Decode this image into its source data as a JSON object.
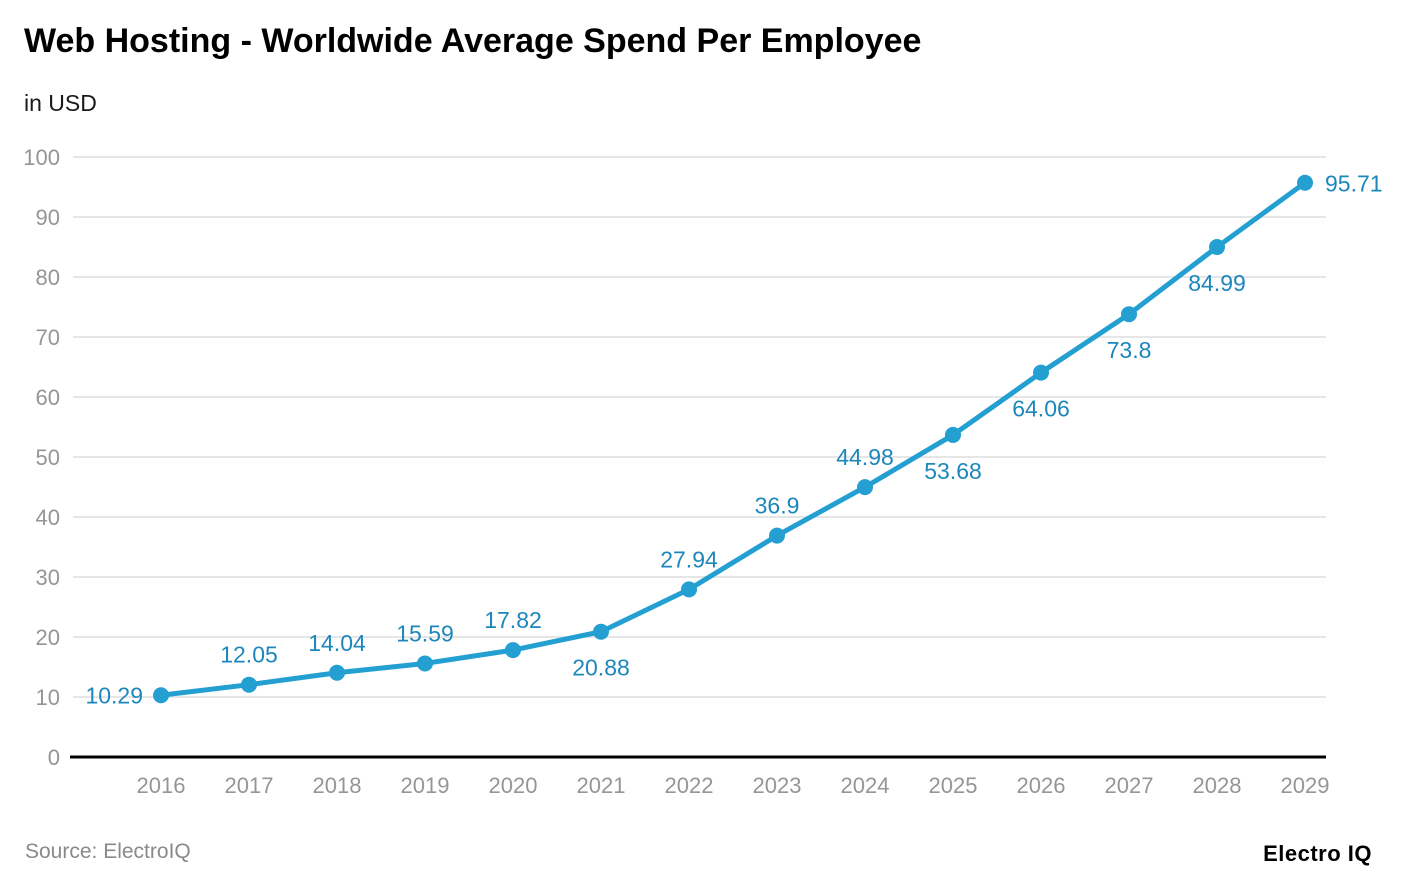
{
  "header": {
    "title": "Web Hosting - Worldwide Average Spend Per Employee",
    "subtitle": "in USD"
  },
  "footer": {
    "source": "Source: ElectroIQ",
    "brand": "Electro IQ"
  },
  "chart_data": {
    "type": "line",
    "title": "Web Hosting - Worldwide Average Spend Per Employee",
    "units": "USD",
    "categories": [
      "2016",
      "2017",
      "2018",
      "2019",
      "2020",
      "2021",
      "2022",
      "2023",
      "2024",
      "2025",
      "2026",
      "2027",
      "2028",
      "2029"
    ],
    "values": [
      10.29,
      12.05,
      14.04,
      15.59,
      17.82,
      20.88,
      27.94,
      36.9,
      44.98,
      53.68,
      64.06,
      73.8,
      84.99,
      95.71
    ],
    "value_labels": [
      "10.29",
      "12.05",
      "14.04",
      "15.59",
      "17.82",
      "20.88",
      "27.94",
      "36.9",
      "44.98",
      "53.68",
      "64.06",
      "73.8",
      "84.99",
      "95.71"
    ],
    "label_positions": [
      "left",
      "above",
      "above",
      "above",
      "above",
      "below",
      "above",
      "above",
      "above",
      "below",
      "below",
      "below",
      "below",
      "right"
    ],
    "xlabel": "",
    "ylabel": "",
    "ylim": [
      0,
      100
    ],
    "ytick_step": 10,
    "grid": true,
    "legend": "none",
    "line_color": "#239fd2",
    "point_color": "#239fd2",
    "data_label_color": "#1d87bb",
    "axis_label_color": "#959595",
    "gridline_color": "#e6e6e6",
    "axis_line_color": "#000000"
  }
}
